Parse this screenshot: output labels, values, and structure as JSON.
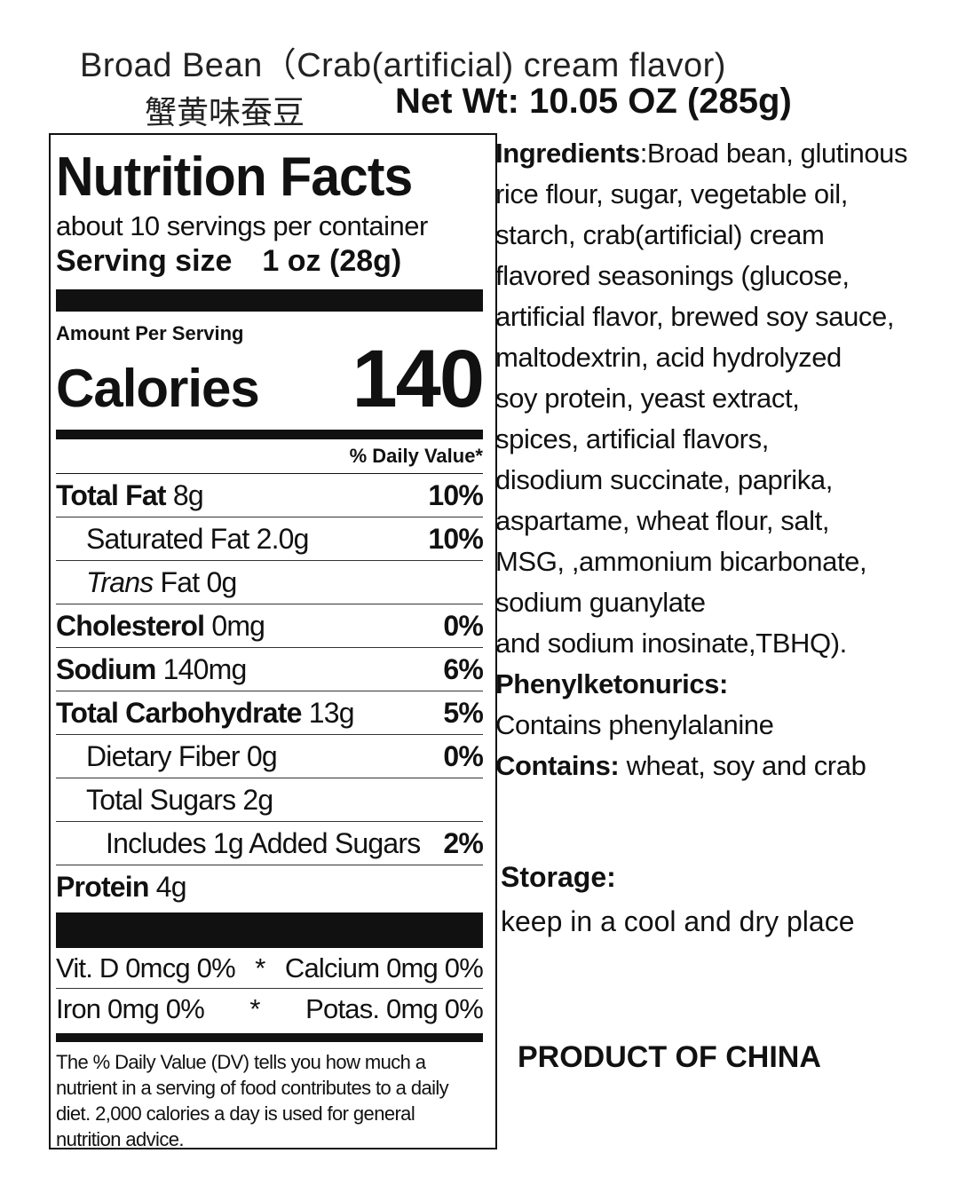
{
  "header": {
    "title": "Broad Bean（Crab(artificial) cream flavor)",
    "chinese_name": "蟹黄味蚕豆",
    "net_weight": "Net Wt: 10.05 OZ (285g)"
  },
  "nutrition": {
    "title": "Nutrition Facts",
    "servings": "about 10 servings per container",
    "serving_size_label": "Serving size",
    "serving_size_value": "1 oz (28g)",
    "amount_per_serving": "Amount Per Serving",
    "calories_label": "Calories",
    "calories_value": "140",
    "daily_value_header": "% Daily Value*",
    "rows": [
      {
        "label": "Total Fat",
        "amount": "8g",
        "dv": "10%"
      },
      {
        "label": "Saturated Fat",
        "amount": "2.0g",
        "dv": "10%"
      },
      {
        "label": "Trans",
        "label2": "Fat",
        "amount": "0g",
        "dv": ""
      },
      {
        "label": "Cholesterol",
        "amount": "0mg",
        "dv": "0%"
      },
      {
        "label": "Sodium",
        "amount": "140mg",
        "dv": "6%"
      },
      {
        "label": "Total Carbohydrate",
        "amount": "13g",
        "dv": "5%"
      },
      {
        "label": "Dietary Fiber",
        "amount": "0g",
        "dv": "0%"
      },
      {
        "label": "Total Sugars",
        "amount": "2g",
        "dv": ""
      },
      {
        "label": "Includes 1g Added Sugars",
        "amount": "",
        "dv": "2%"
      },
      {
        "label": "Protein",
        "amount": "4g",
        "dv": ""
      }
    ],
    "vitamins": [
      {
        "left": "Vit. D  0mcg  0%",
        "sep": "*",
        "right": "Calcium  0mg  0%"
      },
      {
        "left": "Iron  0mg  0%",
        "sep": "*",
        "right": "Potas. 0mg 0%"
      }
    ],
    "footnote": "The % Daily Value (DV) tells you how much a nutrient in a serving of food contributes to a daily diet. 2,000 calories a day is used for general nutrition advice."
  },
  "ingredients": {
    "label": "Ingredients",
    "lines": [
      "Broad bean, glutinous",
      "rice flour, sugar, vegetable oil,",
      "starch, crab(artificial) cream",
      "flavored seasonings (glucose,",
      "artificial flavor, brewed soy sauce,",
      "maltodextrin, acid hydrolyzed",
      "soy protein, yeast extract,",
      "spices, artificial flavors,",
      "disodium succinate, paprika,",
      "aspartame, wheat flour, salt,",
      "MSG, ,ammonium bicarbonate,",
      "sodium guanylate",
      "and sodium inosinate,TBHQ)."
    ],
    "pku_label": "Phenylketonurics:",
    "pku_text": "Contains phenylalanine",
    "contains_label": "Contains:",
    "contains_text": "wheat, soy and crab"
  },
  "storage": {
    "label": "Storage:",
    "text": "keep in a cool and dry place"
  },
  "origin": "PRODUCT OF CHINA"
}
